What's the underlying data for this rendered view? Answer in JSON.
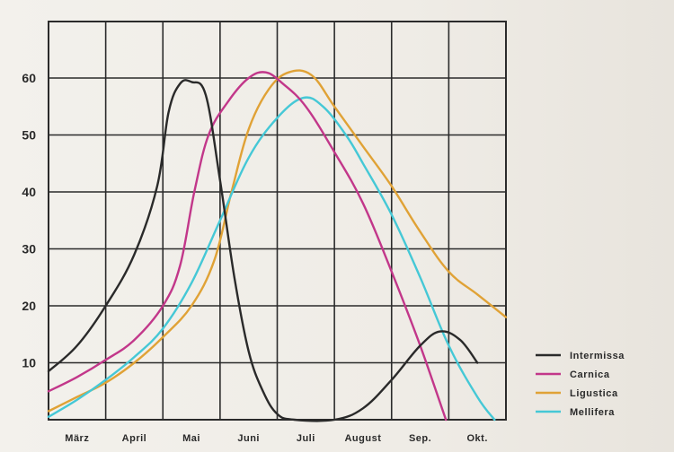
{
  "chart_data": {
    "type": "line",
    "title": "",
    "xlabel": "",
    "ylabel": "",
    "categories": [
      "März",
      "April",
      "Mai",
      "Juni",
      "Juli",
      "August",
      "Sep.",
      "Okt."
    ],
    "x_range": [
      0,
      8
    ],
    "ylim": [
      0,
      60
    ],
    "y_ticks": [
      10,
      20,
      30,
      40,
      50,
      60
    ],
    "grid": true,
    "legend_position": "bottom-right",
    "series": [
      {
        "name": "Intermissa",
        "color": "#2a2a2a",
        "points": [
          [
            0,
            8.5
          ],
          [
            0.5,
            13
          ],
          [
            1,
            20
          ],
          [
            1.5,
            29
          ],
          [
            1.9,
            41
          ],
          [
            2.1,
            54
          ],
          [
            2.3,
            59
          ],
          [
            2.5,
            59.3
          ],
          [
            2.75,
            57
          ],
          [
            3,
            42
          ],
          [
            3.25,
            25
          ],
          [
            3.5,
            12
          ],
          [
            3.75,
            5
          ],
          [
            4,
            1
          ],
          [
            4.3,
            0
          ],
          [
            5,
            0
          ],
          [
            5.5,
            2
          ],
          [
            6,
            7
          ],
          [
            6.5,
            13
          ],
          [
            6.85,
            15.5
          ],
          [
            7.2,
            14
          ],
          [
            7.5,
            10
          ]
        ]
      },
      {
        "name": "Carnica",
        "color": "#c2378a",
        "points": [
          [
            0,
            5
          ],
          [
            0.5,
            7.5
          ],
          [
            1,
            10.5
          ],
          [
            1.5,
            14
          ],
          [
            2,
            20
          ],
          [
            2.3,
            27
          ],
          [
            2.55,
            40
          ],
          [
            2.8,
            50
          ],
          [
            3.15,
            56
          ],
          [
            3.5,
            60
          ],
          [
            3.8,
            61
          ],
          [
            4.1,
            59
          ],
          [
            4.5,
            55
          ],
          [
            5,
            47
          ],
          [
            5.5,
            38
          ],
          [
            6,
            26
          ],
          [
            6.5,
            13
          ],
          [
            6.95,
            0
          ]
        ]
      },
      {
        "name": "Ligustica",
        "color": "#e0a236",
        "points": [
          [
            0,
            1.5
          ],
          [
            0.5,
            4
          ],
          [
            1,
            6.5
          ],
          [
            1.5,
            10
          ],
          [
            2,
            14.5
          ],
          [
            2.5,
            20
          ],
          [
            2.9,
            28
          ],
          [
            3.2,
            40
          ],
          [
            3.5,
            51
          ],
          [
            3.85,
            58
          ],
          [
            4.2,
            61
          ],
          [
            4.6,
            60.5
          ],
          [
            5,
            55
          ],
          [
            5.5,
            48
          ],
          [
            6,
            41
          ],
          [
            6.5,
            33
          ],
          [
            7,
            26
          ],
          [
            7.5,
            22
          ],
          [
            8,
            18
          ]
        ]
      },
      {
        "name": "Mellifera",
        "color": "#45c8d6",
        "points": [
          [
            0,
            0.5
          ],
          [
            0.5,
            3.5
          ],
          [
            1,
            7
          ],
          [
            1.5,
            11
          ],
          [
            2,
            16
          ],
          [
            2.5,
            24
          ],
          [
            3,
            35
          ],
          [
            3.5,
            46
          ],
          [
            4,
            53
          ],
          [
            4.45,
            56.5
          ],
          [
            4.8,
            55
          ],
          [
            5.2,
            50
          ],
          [
            5.5,
            45
          ],
          [
            6,
            36
          ],
          [
            6.5,
            25
          ],
          [
            7,
            13
          ],
          [
            7.5,
            4
          ],
          [
            7.8,
            0
          ]
        ]
      }
    ]
  }
}
